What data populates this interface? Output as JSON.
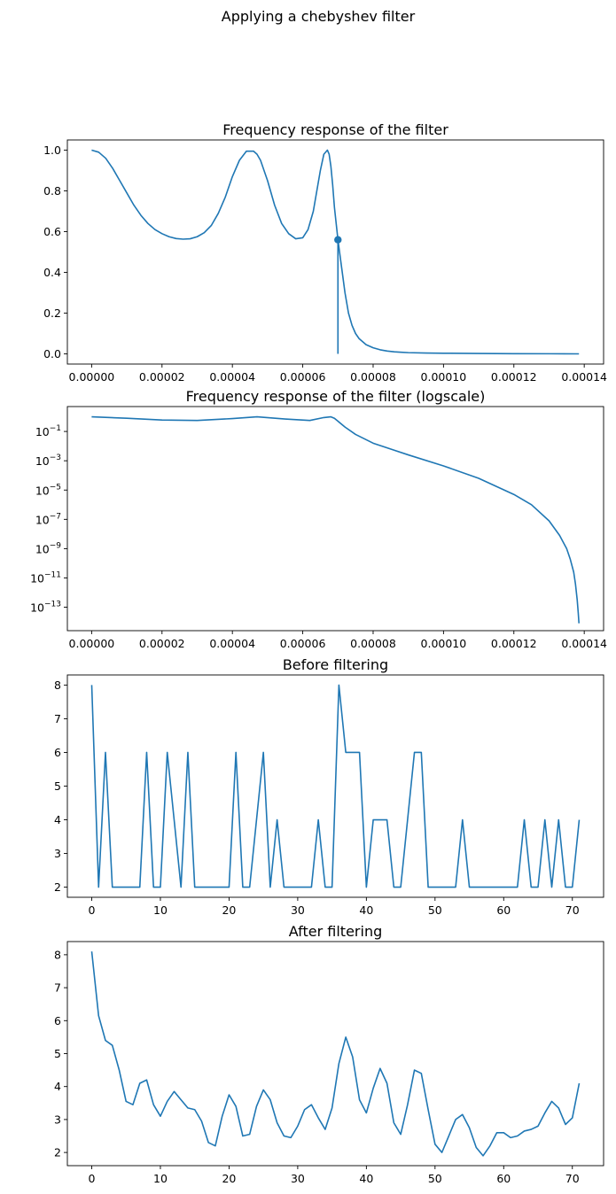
{
  "figure": {
    "title": "Applying a chebyshev filter"
  },
  "colors": {
    "line": "#1f77b4",
    "axes": "#000000",
    "background": "#ffffff"
  },
  "chart_data": [
    {
      "type": "line",
      "title": "Frequency response of the filter",
      "xlim": [
        -6.9e-06,
        0.0001455
      ],
      "ylim": [
        -0.05,
        1.05
      ],
      "xticks": [
        0,
        2e-05,
        4e-05,
        6e-05,
        8e-05,
        0.0001,
        0.00012,
        0.00014
      ],
      "xtick_labels": [
        "0.00000",
        "0.00002",
        "0.00004",
        "0.00006",
        "0.00008",
        "0.00010",
        "0.00012",
        "0.00014"
      ],
      "yticks": [
        0,
        0.2,
        0.4,
        0.6,
        0.8,
        1.0
      ],
      "ytick_labels": [
        "0.0",
        "0.2",
        "0.4",
        "0.6",
        "0.8",
        "1.0"
      ],
      "x": [
        0,
        2e-06,
        4e-06,
        6e-06,
        8e-06,
        1e-05,
        1.2e-05,
        1.4e-05,
        1.6e-05,
        1.8e-05,
        2e-05,
        2.2e-05,
        2.4e-05,
        2.6e-05,
        2.8e-05,
        3e-05,
        3.2e-05,
        3.4e-05,
        3.6e-05,
        3.8e-05,
        4e-05,
        4.2e-05,
        4.4e-05,
        4.6e-05,
        4.7e-05,
        4.8e-05,
        5e-05,
        5.2e-05,
        5.4e-05,
        5.6e-05,
        5.8e-05,
        6e-05,
        6.15e-05,
        6.3e-05,
        6.5e-05,
        6.6e-05,
        6.7e-05,
        6.75e-05,
        6.8e-05,
        6.85e-05,
        6.9e-05,
        6.95e-05,
        7e-05,
        7.1e-05,
        7.2e-05,
        7.3e-05,
        7.4e-05,
        7.5e-05,
        7.6e-05,
        7.8e-05,
        8e-05,
        8.2e-05,
        8.4e-05,
        8.6e-05,
        8.8e-05,
        9e-05,
        9.5e-05,
        0.0001,
        0.00011,
        0.00012,
        0.00013,
        0.0001385
      ],
      "series": [
        {
          "values": [
            1.0,
            0.99,
            0.96,
            0.91,
            0.85,
            0.79,
            0.73,
            0.68,
            0.64,
            0.61,
            0.59,
            0.575,
            0.566,
            0.563,
            0.565,
            0.575,
            0.595,
            0.63,
            0.69,
            0.77,
            0.87,
            0.95,
            0.995,
            0.995,
            0.98,
            0.95,
            0.85,
            0.73,
            0.64,
            0.59,
            0.565,
            0.57,
            0.61,
            0.7,
            0.9,
            0.98,
            1.0,
            0.98,
            0.92,
            0.83,
            0.72,
            0.64,
            0.56,
            0.43,
            0.3,
            0.2,
            0.14,
            0.1,
            0.075,
            0.045,
            0.03,
            0.02,
            0.014,
            0.01,
            0.008,
            0.006,
            0.004,
            0.003,
            0.002,
            0.001,
            0.0005,
            0.0
          ]
        }
      ],
      "marker": {
        "x": 7e-05,
        "y": 0.56
      },
      "stem": {
        "x": 7e-05,
        "y0": 0.0,
        "y1": 0.56
      }
    },
    {
      "type": "line",
      "title": "Frequency response of the filter (logscale)",
      "yscale": "log",
      "xlim": [
        -6.9e-06,
        0.0001455
      ],
      "ylim_exp": [
        -14.6,
        0.7
      ],
      "xticks": [
        0,
        2e-05,
        4e-05,
        6e-05,
        8e-05,
        0.0001,
        0.00012,
        0.00014
      ],
      "xtick_labels": [
        "0.00000",
        "0.00002",
        "0.00004",
        "0.00006",
        "0.00008",
        "0.00010",
        "0.00012",
        "0.00014"
      ],
      "yticks_exp": [
        -1,
        -3,
        -5,
        -7,
        -9,
        -11,
        -13
      ],
      "ytick_base": "10",
      "ytick_exponents": [
        "−1",
        "−3",
        "−5",
        "−7",
        "−9",
        "−11",
        "−13"
      ],
      "x": [
        0,
        1e-05,
        2e-05,
        3e-05,
        4e-05,
        4.7e-05,
        5.5e-05,
        6.2e-05,
        6.6e-05,
        6.8e-05,
        6.9e-05,
        7e-05,
        7.2e-05,
        7.5e-05,
        8e-05,
        9e-05,
        0.0001,
        0.00011,
        0.00012,
        0.000125,
        0.00013,
        0.000133,
        0.000135,
        0.000136,
        0.000137,
        0.0001375,
        0.000138,
        0.0001383,
        0.0001385
      ],
      "series": [
        {
          "values_log10": [
            0,
            -0.1,
            -0.22,
            -0.25,
            -0.12,
            0.0,
            -0.15,
            -0.25,
            -0.05,
            0.0,
            -0.1,
            -0.3,
            -0.7,
            -1.2,
            -1.8,
            -2.6,
            -3.35,
            -4.2,
            -5.3,
            -6.0,
            -7.1,
            -8.1,
            -9.0,
            -9.7,
            -10.6,
            -11.4,
            -12.5,
            -13.4,
            -14.1
          ]
        }
      ]
    },
    {
      "type": "line",
      "title": "Before filtering",
      "xlim": [
        -3.55,
        74.55
      ],
      "ylim": [
        1.7,
        8.3
      ],
      "xticks": [
        0,
        10,
        20,
        30,
        40,
        50,
        60,
        70
      ],
      "xtick_labels": [
        "0",
        "10",
        "20",
        "30",
        "40",
        "50",
        "60",
        "70"
      ],
      "yticks": [
        2,
        3,
        4,
        5,
        6,
        7,
        8
      ],
      "ytick_labels": [
        "2",
        "3",
        "4",
        "5",
        "6",
        "7",
        "8"
      ],
      "x": [
        0,
        1,
        2,
        3,
        4,
        5,
        6,
        7,
        8,
        9,
        10,
        11,
        12,
        13,
        14,
        15,
        16,
        17,
        18,
        19,
        20,
        21,
        22,
        23,
        24,
        25,
        26,
        27,
        28,
        29,
        30,
        31,
        32,
        33,
        34,
        35,
        36,
        37,
        38,
        39,
        40,
        41,
        42,
        43,
        44,
        45,
        46,
        47,
        48,
        49,
        50,
        51,
        52,
        53,
        54,
        55,
        56,
        57,
        58,
        59,
        60,
        61,
        62,
        63,
        64,
        65,
        66,
        67,
        68,
        69,
        70,
        71
      ],
      "series": [
        {
          "values": [
            8,
            2,
            6,
            2,
            2,
            2,
            2,
            2,
            6,
            2,
            2,
            6,
            4,
            2,
            6,
            2,
            2,
            2,
            2,
            2,
            2,
            6,
            2,
            2,
            4,
            6,
            2,
            4,
            2,
            2,
            2,
            2,
            2,
            4,
            2,
            2,
            8,
            6,
            6,
            6,
            2,
            4,
            4,
            4,
            2,
            2,
            4,
            6,
            6,
            2,
            2,
            2,
            2,
            2,
            4,
            2,
            2,
            2,
            2,
            2,
            2,
            2,
            2,
            4,
            2,
            2,
            4,
            2,
            4,
            2,
            2,
            4
          ]
        }
      ]
    },
    {
      "type": "line",
      "title": "After filtering",
      "xlim": [
        -3.55,
        74.55
      ],
      "ylim": [
        1.6,
        8.4
      ],
      "xticks": [
        0,
        10,
        20,
        30,
        40,
        50,
        60,
        70
      ],
      "xtick_labels": [
        "0",
        "10",
        "20",
        "30",
        "40",
        "50",
        "60",
        "70"
      ],
      "yticks": [
        2,
        3,
        4,
        5,
        6,
        7,
        8
      ],
      "ytick_labels": [
        "2",
        "3",
        "4",
        "5",
        "6",
        "7",
        "8"
      ],
      "x": [
        0,
        1,
        2,
        3,
        4,
        5,
        6,
        7,
        8,
        9,
        10,
        11,
        12,
        13,
        14,
        15,
        16,
        17,
        18,
        19,
        20,
        21,
        22,
        23,
        24,
        25,
        26,
        27,
        28,
        29,
        30,
        31,
        32,
        33,
        34,
        35,
        36,
        37,
        38,
        39,
        40,
        41,
        42,
        43,
        44,
        45,
        46,
        47,
        48,
        49,
        50,
        51,
        52,
        53,
        54,
        55,
        56,
        57,
        58,
        59,
        60,
        61,
        62,
        63,
        64,
        65,
        66,
        67,
        68,
        69,
        70,
        71
      ],
      "series": [
        {
          "values": [
            8.1,
            6.15,
            5.4,
            5.25,
            4.5,
            3.55,
            3.45,
            4.1,
            4.2,
            3.45,
            3.1,
            3.55,
            3.85,
            3.6,
            3.35,
            3.3,
            2.95,
            2.3,
            2.2,
            3.1,
            3.75,
            3.4,
            2.5,
            2.55,
            3.4,
            3.9,
            3.6,
            2.9,
            2.5,
            2.45,
            2.8,
            3.3,
            3.45,
            3.05,
            2.7,
            3.35,
            4.7,
            5.5,
            4.9,
            3.6,
            3.2,
            3.95,
            4.55,
            4.1,
            2.9,
            2.55,
            3.45,
            4.5,
            4.4,
            3.3,
            2.25,
            2.0,
            2.5,
            3.0,
            3.15,
            2.75,
            2.15,
            1.9,
            2.2,
            2.6,
            2.6,
            2.45,
            2.5,
            2.65,
            2.7,
            2.8,
            3.2,
            3.55,
            3.35,
            2.85,
            3.05,
            4.1
          ]
        }
      ]
    }
  ]
}
